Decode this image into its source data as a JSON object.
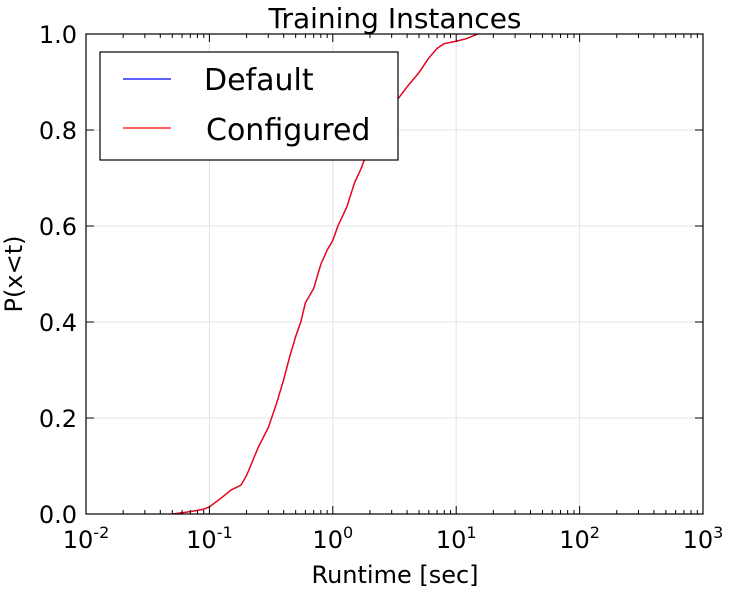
{
  "chart_data": {
    "type": "line",
    "title": "Training Instances",
    "xlabel": "Runtime [sec]",
    "ylabel": "P(x<t)",
    "x_scale": "log",
    "xlim": [
      0.01,
      1000
    ],
    "ylim": [
      0.0,
      1.0
    ],
    "grid": true,
    "legend_position": "top-left",
    "x_ticks": [
      {
        "base": "10",
        "exp": "-2",
        "value": 0.01
      },
      {
        "base": "10",
        "exp": "-1",
        "value": 0.1
      },
      {
        "base": "10",
        "exp": "0",
        "value": 1
      },
      {
        "base": "10",
        "exp": "1",
        "value": 10
      },
      {
        "base": "10",
        "exp": "2",
        "value": 100
      },
      {
        "base": "10",
        "exp": "3",
        "value": 1000
      }
    ],
    "y_ticks": [
      {
        "label": "0.0",
        "value": 0.0
      },
      {
        "label": "0.2",
        "value": 0.2
      },
      {
        "label": "0.4",
        "value": 0.4
      },
      {
        "label": "0.6",
        "value": 0.6
      },
      {
        "label": "0.8",
        "value": 0.8
      },
      {
        "label": "1.0",
        "value": 1.0
      }
    ],
    "series": [
      {
        "name": "Default",
        "color": "#0000ff",
        "x": [
          0.05,
          0.07,
          0.09,
          0.1,
          0.12,
          0.15,
          0.18,
          0.2,
          0.25,
          0.3,
          0.35,
          0.4,
          0.45,
          0.5,
          0.55,
          0.6,
          0.7,
          0.8,
          0.9,
          1.0,
          1.1,
          1.3,
          1.5,
          1.7,
          2.0,
          2.3,
          2.6,
          3.0,
          3.5,
          4.0,
          5.0,
          6.0,
          7.0,
          8.0,
          10.0,
          12.0,
          15.0
        ],
        "y": [
          0.0,
          0.005,
          0.01,
          0.015,
          0.03,
          0.05,
          0.06,
          0.08,
          0.14,
          0.18,
          0.23,
          0.28,
          0.33,
          0.37,
          0.4,
          0.44,
          0.47,
          0.52,
          0.55,
          0.57,
          0.6,
          0.64,
          0.69,
          0.72,
          0.77,
          0.8,
          0.83,
          0.85,
          0.87,
          0.89,
          0.92,
          0.95,
          0.97,
          0.98,
          0.985,
          0.99,
          1.0
        ]
      },
      {
        "name": "Configured",
        "color": "#ff0000",
        "x": [
          0.05,
          0.07,
          0.09,
          0.1,
          0.12,
          0.15,
          0.18,
          0.2,
          0.25,
          0.3,
          0.35,
          0.4,
          0.45,
          0.5,
          0.55,
          0.6,
          0.7,
          0.8,
          0.9,
          1.0,
          1.1,
          1.3,
          1.5,
          1.7,
          2.0,
          2.3,
          2.6,
          3.0,
          3.5,
          4.0,
          5.0,
          6.0,
          7.0,
          8.0,
          10.0,
          12.0,
          15.0
        ],
        "y": [
          0.0,
          0.005,
          0.01,
          0.015,
          0.03,
          0.05,
          0.06,
          0.08,
          0.14,
          0.18,
          0.23,
          0.28,
          0.33,
          0.37,
          0.4,
          0.44,
          0.47,
          0.52,
          0.55,
          0.57,
          0.6,
          0.64,
          0.69,
          0.72,
          0.77,
          0.8,
          0.83,
          0.85,
          0.87,
          0.89,
          0.92,
          0.95,
          0.97,
          0.98,
          0.985,
          0.99,
          1.0
        ]
      }
    ]
  }
}
